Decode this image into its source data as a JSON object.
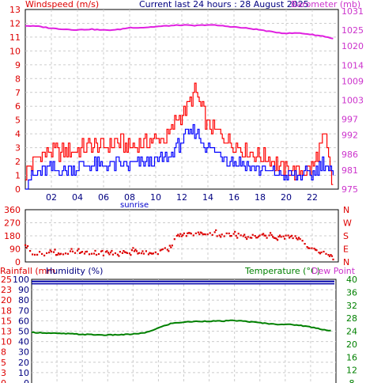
{
  "header": {
    "windspeed_title": "Windspeed (m/s)",
    "current_title": "Current last 24 hours : 28 August 2025",
    "barometer_title": "Barometer (mb)",
    "sunrise_label": "sunrise",
    "rainfall_title": "Rainfall (mm",
    "humidity_title": "Humidity (%)",
    "temperature_title": "Temperature (°C)",
    "dewpoint_title": "Dew Point"
  },
  "colors": {
    "wind_gust": "#ff0000",
    "wind_avg": "#0000ff",
    "barometer": "#e020e0",
    "direction": "#dd0000",
    "humidity": "#0000aa",
    "temperature": "#008000",
    "grid": "#cccccc"
  },
  "chart_data": [
    {
      "type": "line",
      "title": "Windspeed (m/s) / Barometer (mb)",
      "x_ticks": [
        "02",
        "04",
        "06",
        "08",
        "10",
        "12",
        "14",
        "16",
        "18",
        "20",
        "22"
      ],
      "x_range_hours": [
        0,
        24
      ],
      "left_ticks": [
        "0",
        "1",
        "2",
        "3",
        "4",
        "5",
        "6",
        "7",
        "8",
        "9",
        "10",
        "11",
        "12",
        "13"
      ],
      "ylim_left": [
        0,
        13
      ],
      "right_ticks": [
        "975",
        "981",
        "986",
        "992",
        "997",
        "1003",
        "1009",
        "1014",
        "1020",
        "1025",
        "1031"
      ],
      "series": [
        {
          "name": "Gust",
          "axis": "left",
          "x": [
            0,
            1,
            2,
            3,
            4,
            5,
            6,
            7,
            8,
            9,
            10,
            11,
            11.5,
            12,
            12.5,
            13,
            13.5,
            14,
            15,
            16,
            17,
            18,
            19,
            20,
            21,
            22,
            22.5,
            23,
            23.5
          ],
          "values": [
            1.2,
            2.4,
            2.8,
            2.6,
            2.8,
            3.2,
            3.0,
            3.5,
            3.0,
            3.4,
            3.6,
            3.8,
            5.0,
            5.5,
            6.0,
            7.0,
            5.8,
            4.5,
            4.0,
            3.2,
            2.8,
            2.5,
            2.0,
            1.4,
            1.2,
            1.5,
            2.8,
            3.7,
            0.3
          ]
        },
        {
          "name": "Average",
          "axis": "left",
          "x": [
            0,
            1,
            2,
            3,
            4,
            5,
            6,
            7,
            8,
            9,
            10,
            11,
            11.5,
            12,
            12.5,
            13,
            13.5,
            14,
            15,
            16,
            17,
            18,
            19,
            20,
            21,
            22,
            22.5,
            23,
            23.5
          ],
          "values": [
            0.5,
            1.2,
            1.5,
            1.4,
            1.6,
            1.8,
            1.6,
            1.8,
            1.7,
            1.9,
            2.0,
            2.3,
            3.0,
            3.5,
            4.0,
            4.2,
            3.6,
            3.0,
            2.5,
            2.0,
            1.7,
            1.4,
            1.2,
            0.9,
            1.0,
            1.1,
            1.7,
            2.0,
            0.9
          ]
        },
        {
          "name": "Barometer",
          "axis": "right",
          "x": [
            0,
            1,
            2,
            3,
            4,
            5,
            6,
            7,
            8,
            9,
            10,
            11,
            12,
            13,
            14,
            15,
            16,
            17,
            18,
            19,
            20,
            21,
            22,
            23,
            23.5
          ],
          "values": [
            1026.4,
            1026.2,
            1025.6,
            1025.3,
            1025.1,
            1025.3,
            1025.0,
            1025.1,
            1025.8,
            1025.8,
            1026.1,
            1026.4,
            1026.6,
            1026.4,
            1026.7,
            1026.4,
            1026.0,
            1025.6,
            1025.1,
            1024.4,
            1024.0,
            1024.1,
            1023.6,
            1023.0,
            1022.4
          ]
        }
      ]
    },
    {
      "type": "scatter",
      "title": "Wind Direction",
      "left_ticks": [
        "360",
        "270",
        "180",
        "90",
        "0"
      ],
      "right_ticks": [
        "N",
        "W",
        "S",
        "E",
        "N"
      ],
      "ylim": [
        0,
        360
      ],
      "series": [
        {
          "name": "Direction",
          "x": [
            0,
            0.4,
            1,
            2,
            3,
            4,
            5,
            6,
            7,
            8,
            9,
            10,
            11,
            11.5,
            12,
            13,
            14,
            15,
            16,
            17,
            18,
            19,
            20,
            21,
            22,
            23,
            23.5
          ],
          "values": [
            125,
            70,
            55,
            65,
            60,
            65,
            55,
            60,
            58,
            70,
            68,
            65,
            90,
            165,
            185,
            195,
            200,
            190,
            185,
            182,
            180,
            175,
            170,
            165,
            80,
            75,
            30
          ]
        }
      ]
    },
    {
      "type": "line",
      "title": "Rainfall / Humidity / Temperature / Dew Point",
      "left_ticks_rain": [
        "25",
        "23",
        "20",
        "18",
        "15",
        "13",
        "10",
        "8",
        "5",
        "3",
        "0"
      ],
      "left_ticks_hum": [
        "100",
        "90",
        "80",
        "70",
        "60",
        "50",
        "40",
        "30",
        "20",
        "10",
        "0"
      ],
      "right_ticks": [
        "40",
        "36",
        "32",
        "28",
        "24",
        "20",
        "16",
        "12",
        "8"
      ],
      "ylim_humidity": [
        0,
        100
      ],
      "ylim_temperature": [
        8,
        40
      ],
      "series": [
        {
          "name": "Humidity",
          "axis": "left",
          "x": [
            0,
            24
          ],
          "values": [
            98,
            98
          ]
        },
        {
          "name": "Temperature",
          "axis": "right",
          "x": [
            0,
            1,
            2,
            3,
            4,
            5,
            6,
            7,
            8,
            9,
            10,
            11,
            12,
            13,
            14,
            15,
            16,
            17,
            18,
            19,
            20,
            21,
            22,
            23,
            23.5
          ],
          "values": [
            23.6,
            23.5,
            23.3,
            23.2,
            23.0,
            22.9,
            22.8,
            22.9,
            23.1,
            23.5,
            25.0,
            26.4,
            26.8,
            27.0,
            27.1,
            27.1,
            27.3,
            27.0,
            26.6,
            26.2,
            26.1,
            25.9,
            25.3,
            24.5,
            24.2
          ]
        }
      ]
    }
  ]
}
